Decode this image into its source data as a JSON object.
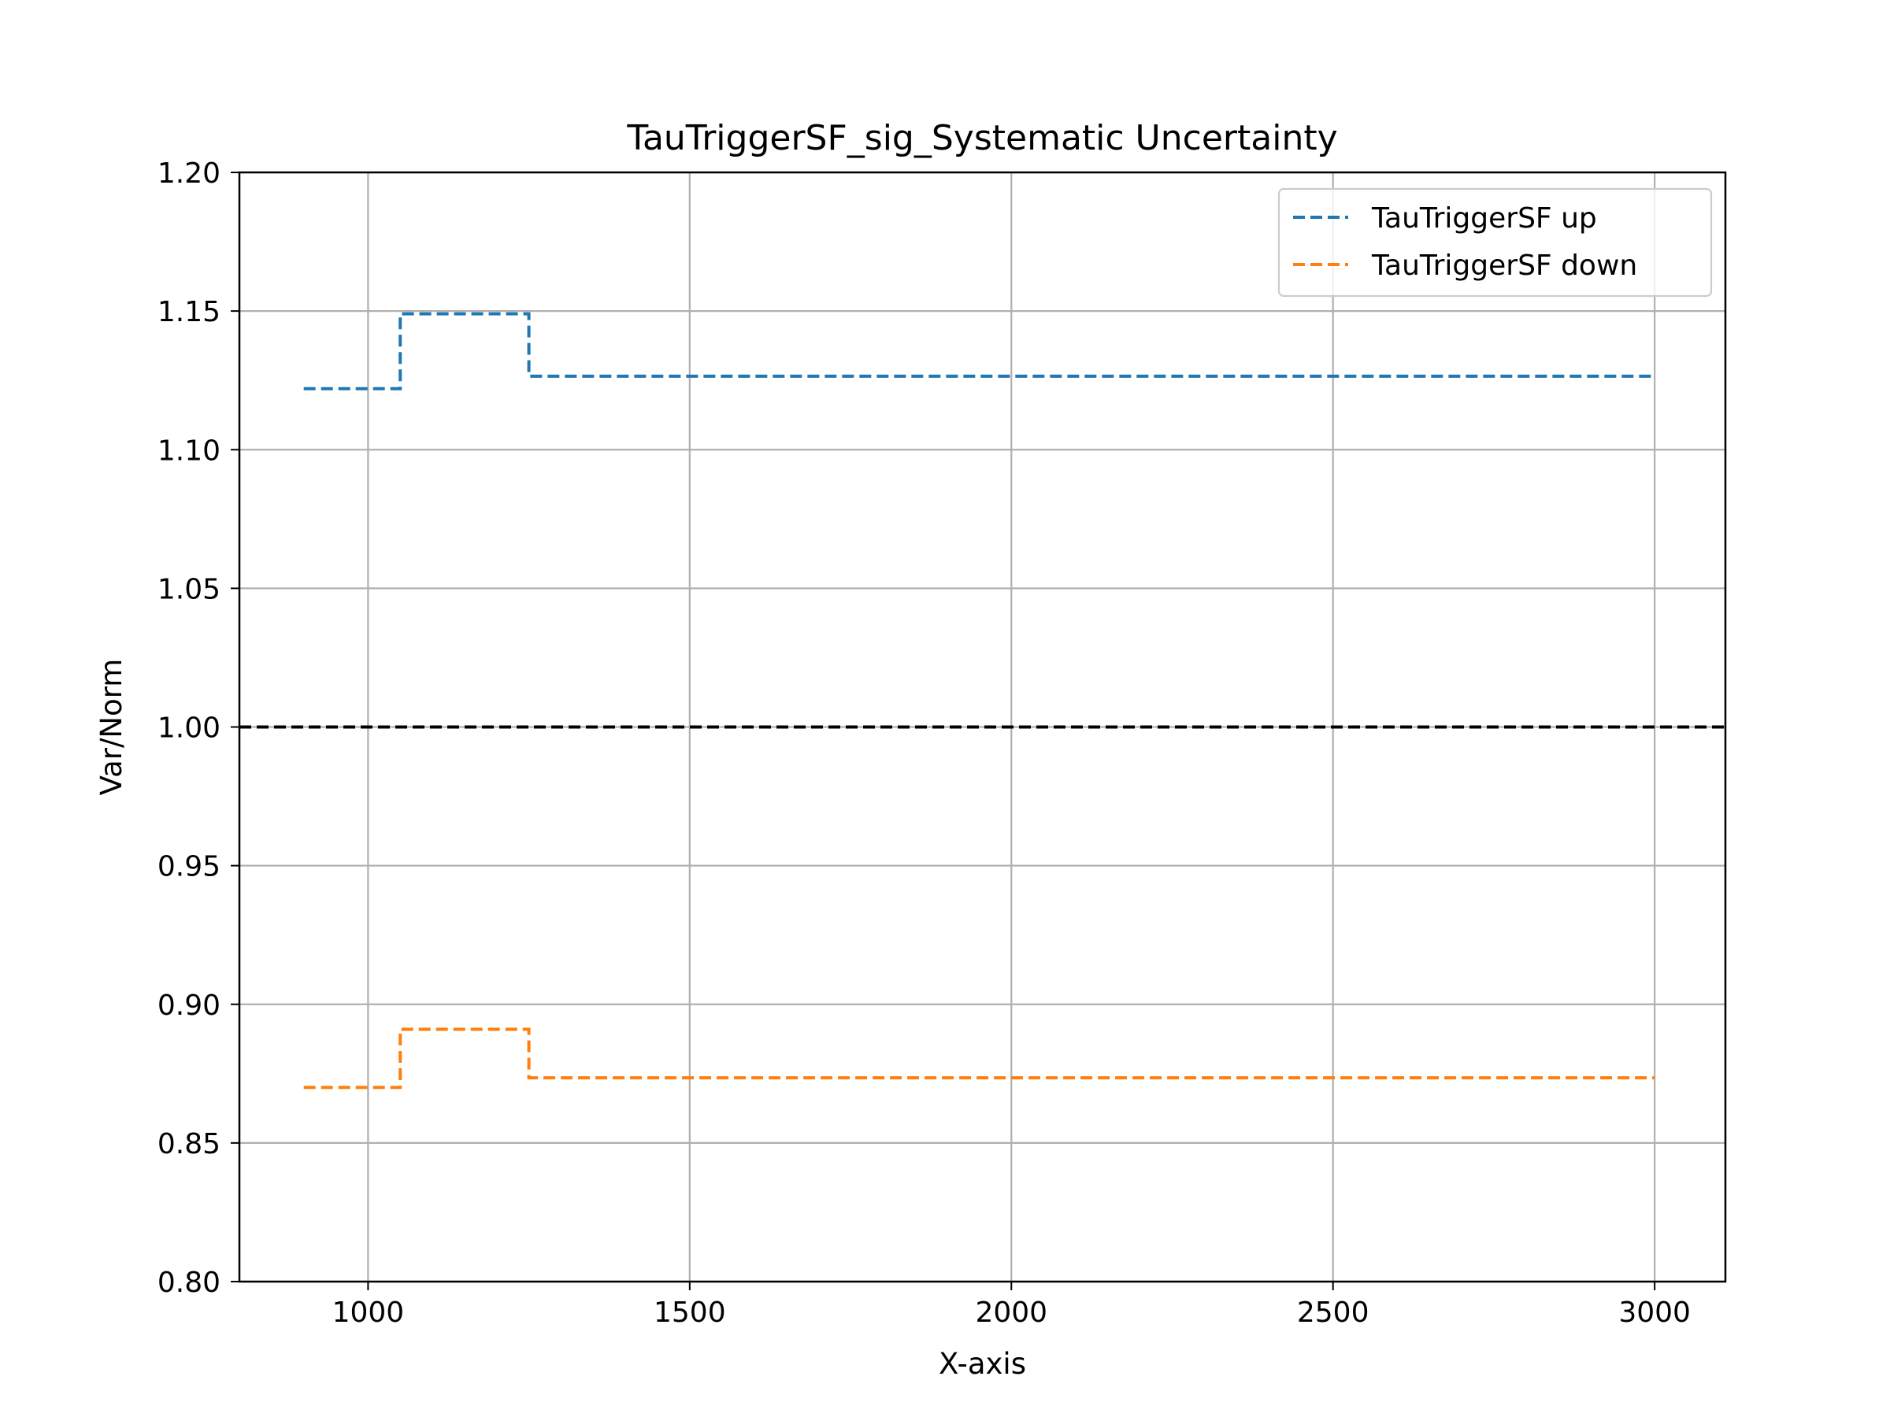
{
  "chart_data": {
    "type": "line",
    "title": "TauTriggerSF_sig_Systematic Uncertainty",
    "xlabel": "X-axis",
    "ylabel": "Var/Norm",
    "xlim": [
      800,
      3110
    ],
    "ylim": [
      0.8,
      1.2
    ],
    "x_ticks": [
      1000,
      1500,
      2000,
      2500,
      3000
    ],
    "x_tick_labels": [
      "1000",
      "1500",
      "2000",
      "2500",
      "3000"
    ],
    "y_ticks": [
      0.8,
      0.85,
      0.9,
      0.95,
      1.0,
      1.05,
      1.1,
      1.15,
      1.2
    ],
    "y_tick_labels": [
      "0.80",
      "0.85",
      "0.90",
      "0.95",
      "1.00",
      "1.05",
      "1.10",
      "1.15",
      "1.20"
    ],
    "grid": true,
    "legend_position": "top-right",
    "step_style": "post",
    "series": [
      {
        "name": "TauTriggerSF up",
        "color": "#1f77b4",
        "linestyle": "dashed",
        "x": [
          900,
          1050,
          1250,
          3000
        ],
        "y": [
          1.122,
          1.149,
          1.1265,
          1.1265
        ]
      },
      {
        "name": "TauTriggerSF down",
        "color": "#ff7f0e",
        "linestyle": "dashed",
        "x": [
          900,
          1050,
          1250,
          3000
        ],
        "y": [
          0.87,
          0.891,
          0.8735,
          0.8735
        ]
      }
    ],
    "reference_line": {
      "y": 1.0,
      "color": "#000000",
      "linestyle": "dashed"
    }
  }
}
